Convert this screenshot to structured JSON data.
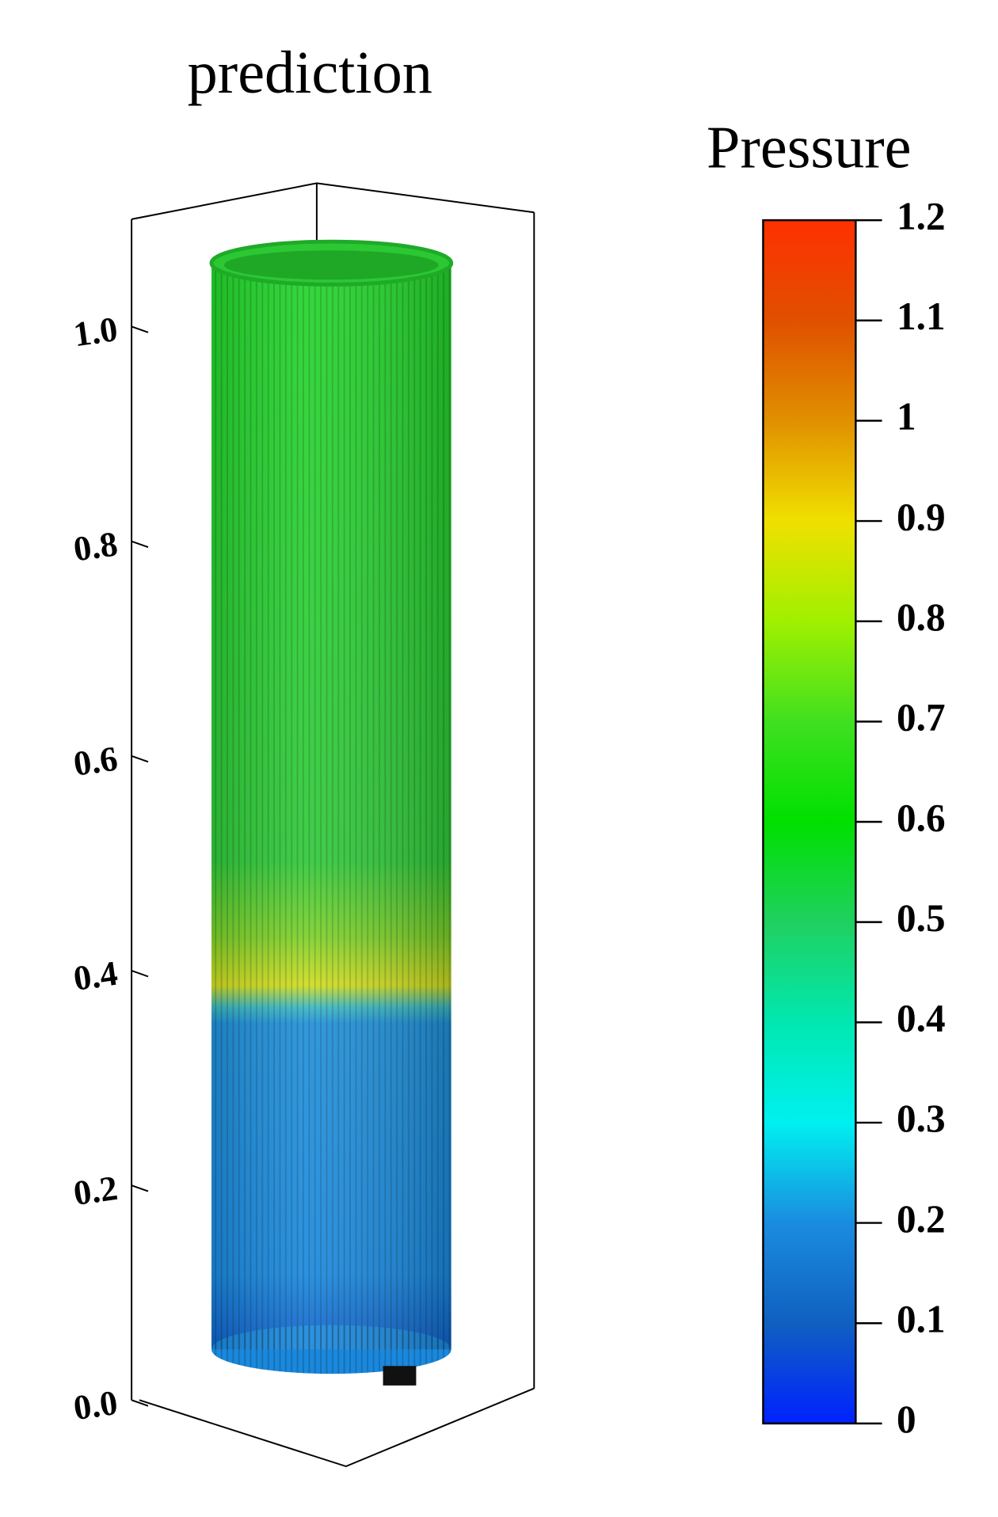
{
  "chart_data": {
    "type": "surface3d",
    "title": "prediction",
    "zlim": [
      0,
      1.1
    ],
    "zticks": [
      {
        "value": 0,
        "label": "0.0"
      },
      0.2,
      0.4,
      0.6,
      0.8,
      {
        "value": 1,
        "label": "1.0"
      }
    ],
    "colorbar": {
      "title": "Pressure",
      "clim": [
        0,
        1.2
      ],
      "ticks": [
        0,
        0.1,
        0.2,
        0.3,
        0.4,
        0.5,
        0.6,
        0.7,
        0.8,
        0.9,
        1,
        1.1,
        1.2
      ],
      "colors": [
        "#0022ff",
        "#1060c0",
        "#1a8ce0",
        "#00f0f0",
        "#00e8b0",
        "#20d060",
        "#00e000",
        "#40e020",
        "#a0f000",
        "#f0e000",
        "#e09000",
        "#e05000",
        "#ff3000"
      ]
    }
  }
}
